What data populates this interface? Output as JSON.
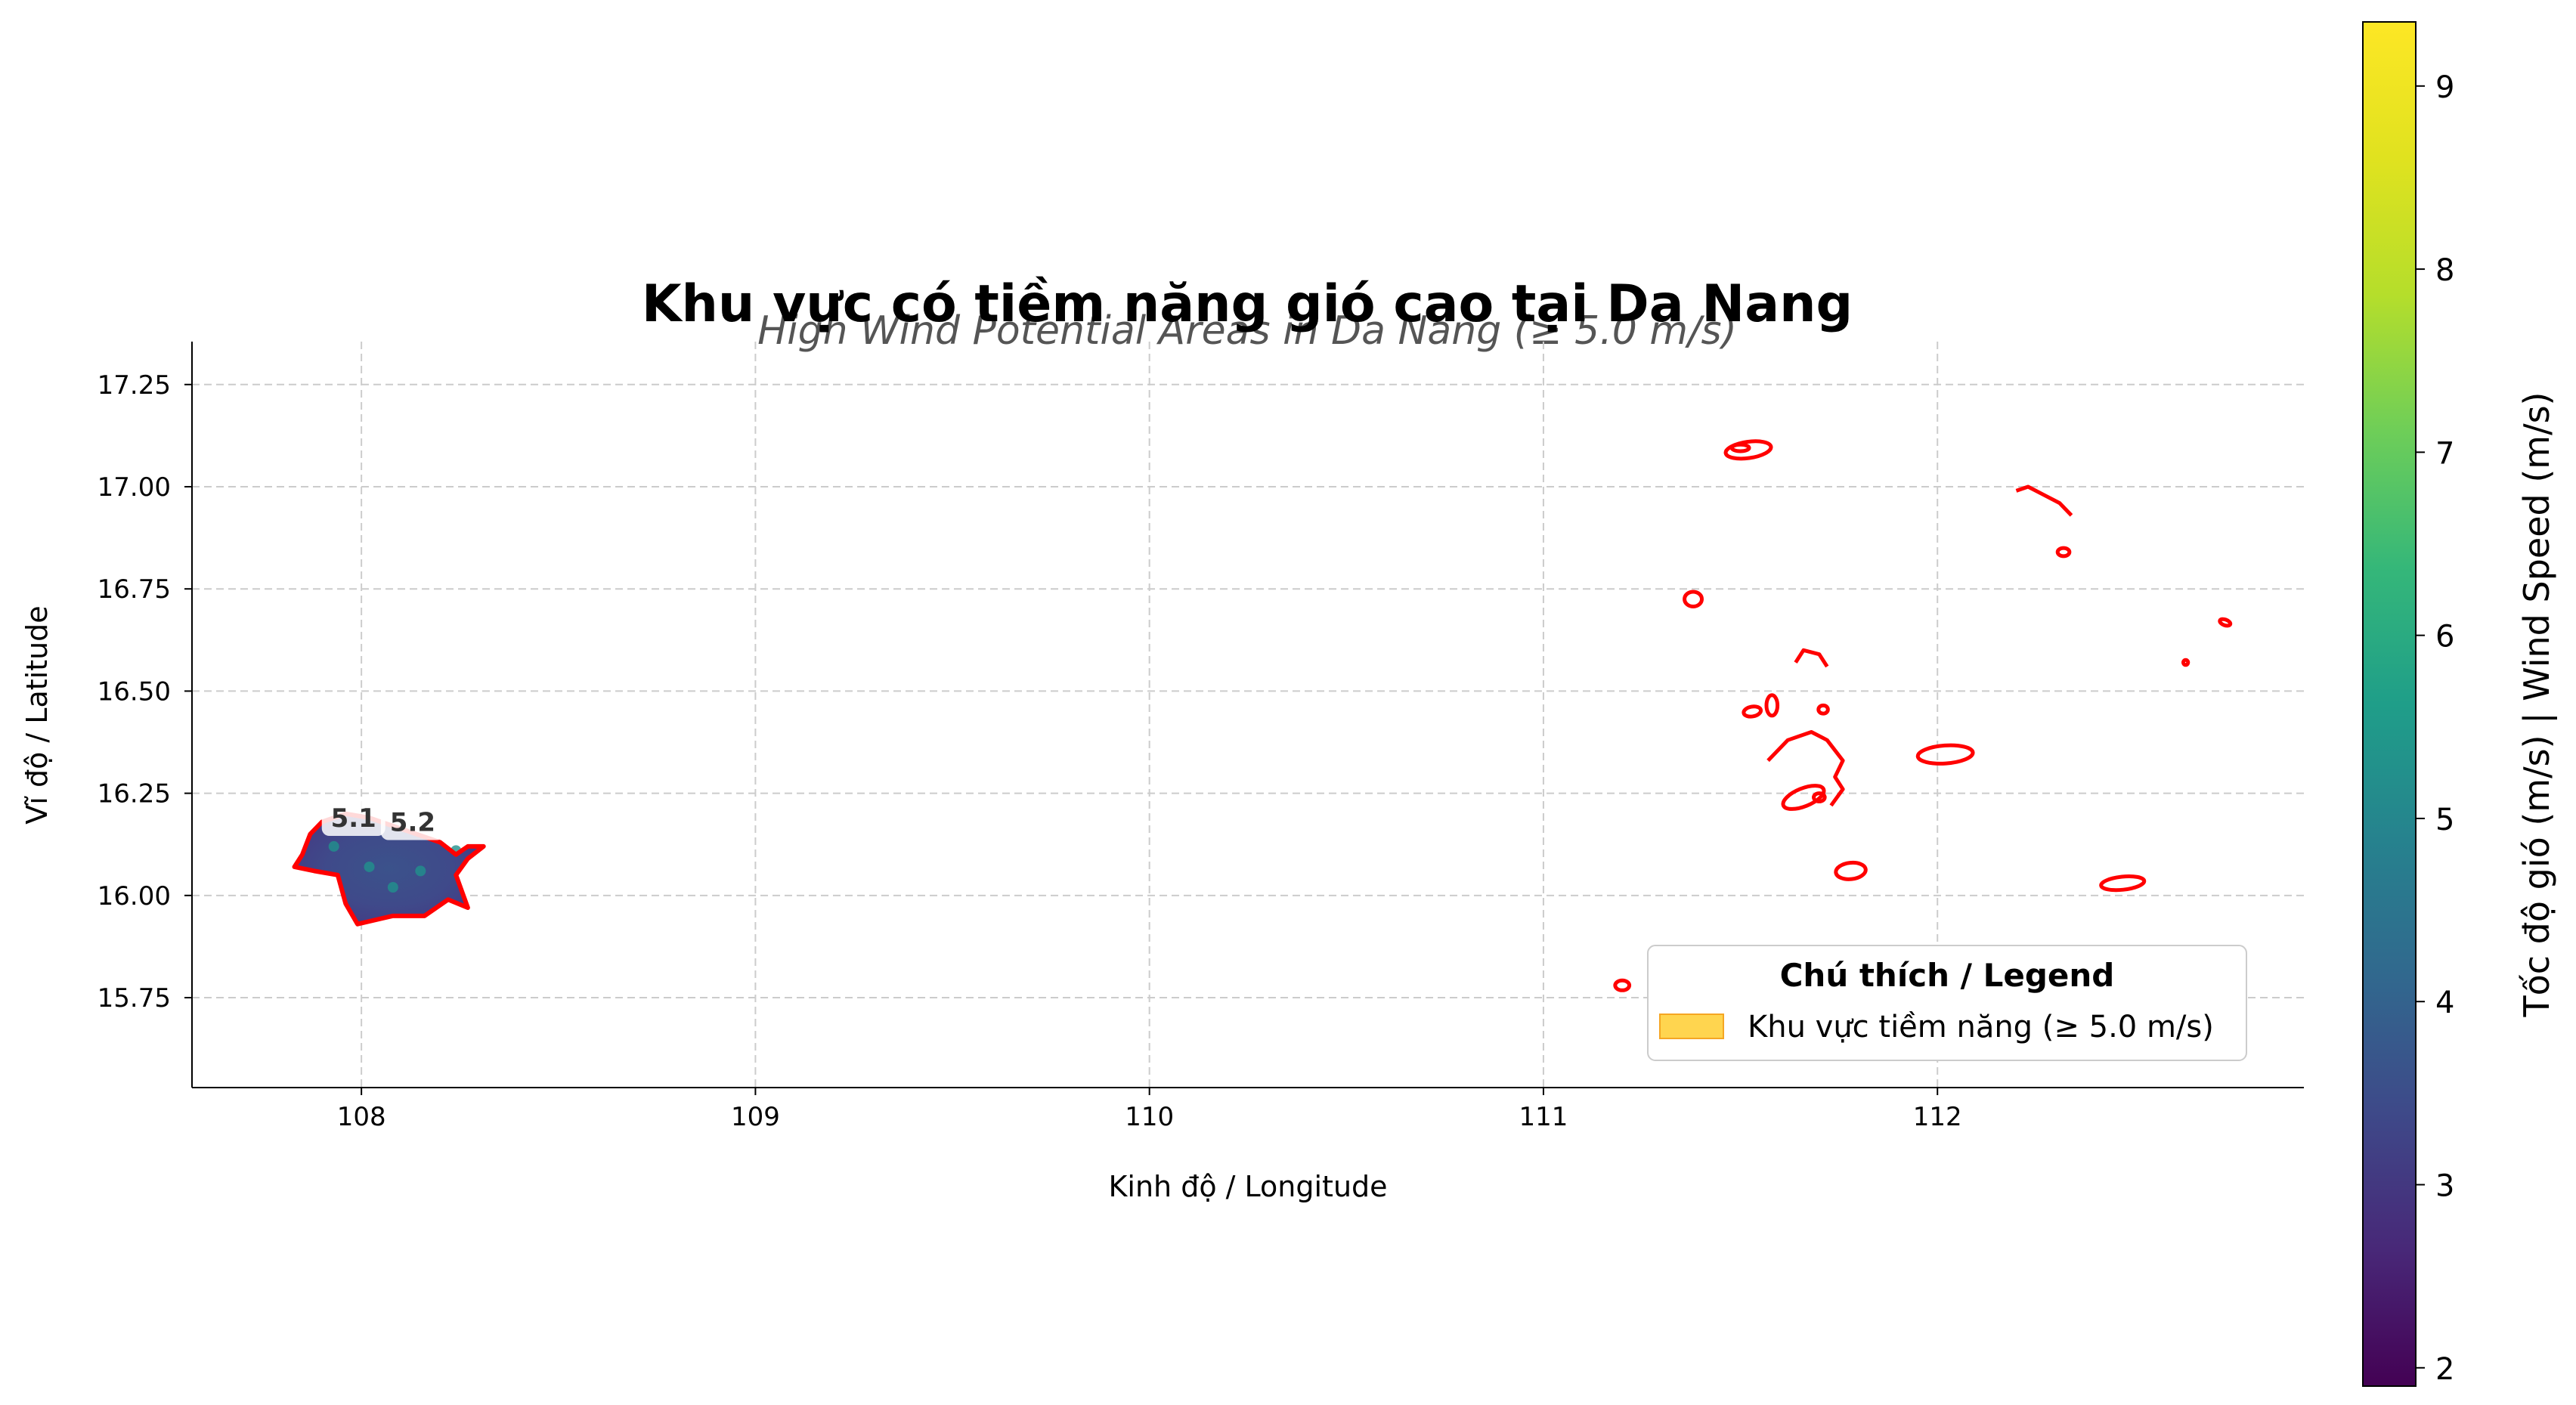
{
  "chart_data": {
    "type": "map",
    "title": "Khu vực có tiềm năng gió cao tại Da Nang",
    "subtitle": "High Wind Potential Areas in Da Nang (≥ 5.0 m/s)",
    "xlabel": "Kinh độ / Longitude",
    "ylabel": "Vĩ độ / Latitude",
    "xlim": [
      107.57,
      112.93
    ],
    "ylim": [
      15.53,
      17.355
    ],
    "xticks": [
      108,
      109,
      110,
      111,
      112
    ],
    "xtick_labels": [
      "108",
      "109",
      "110",
      "111",
      "112"
    ],
    "yticks": [
      15.75,
      16.0,
      16.25,
      16.5,
      16.75,
      17.0,
      17.25
    ],
    "ytick_labels": [
      "15.75",
      "16.00",
      "16.25",
      "16.50",
      "16.75",
      "17.00",
      "17.25"
    ],
    "grid": true,
    "colorbar": {
      "label": "Tốc độ gió (m/s) | Wind Speed (m/s)",
      "colormap": "viridis",
      "min": 1.9,
      "max": 9.35,
      "ticks": [
        2,
        3,
        4,
        5,
        6,
        7,
        8,
        9
      ],
      "tick_labels": [
        "2",
        "3",
        "4",
        "5",
        "6",
        "7",
        "8",
        "9"
      ]
    },
    "legend": {
      "title": "Chú thích / Legend",
      "position": "lower-right",
      "entries": [
        {
          "label": "Khu vực tiềm năng (≥ 5.0 m/s)",
          "color": "#ffd54f"
        }
      ]
    },
    "annotations": [
      {
        "text": "5.1",
        "x": 107.98,
        "y": 16.19
      },
      {
        "text": "5.2",
        "x": 108.13,
        "y": 16.18
      }
    ],
    "threshold_contour_color": "#ff0000",
    "land_region": {
      "description_color": "#3b528b",
      "outline": [
        [
          107.83,
          16.07
        ],
        [
          107.85,
          16.1
        ],
        [
          107.87,
          16.15
        ],
        [
          107.9,
          16.18
        ],
        [
          107.96,
          16.2
        ],
        [
          108.02,
          16.19
        ],
        [
          108.08,
          16.17
        ],
        [
          108.14,
          16.15
        ],
        [
          108.2,
          16.13
        ],
        [
          108.24,
          16.1
        ],
        [
          108.27,
          16.12
        ],
        [
          108.31,
          16.12
        ],
        [
          108.27,
          16.09
        ],
        [
          108.24,
          16.05
        ],
        [
          108.27,
          15.97
        ],
        [
          108.22,
          15.99
        ],
        [
          108.16,
          15.95
        ],
        [
          108.08,
          15.95
        ],
        [
          107.99,
          15.93
        ],
        [
          107.96,
          15.98
        ],
        [
          107.94,
          16.05
        ],
        [
          107.88,
          16.06
        ],
        [
          107.83,
          16.07
        ]
      ]
    },
    "contours": [
      {
        "center": [
          111.52,
          17.09
        ],
        "rx": 0.058,
        "ry": 0.02,
        "rot": -8
      },
      {
        "center": [
          111.5,
          17.095
        ],
        "rx": 0.022,
        "ry": 0.008,
        "rot": 0
      },
      {
        "center": [
          111.38,
          16.725
        ],
        "rx": 0.022,
        "ry": 0.018,
        "rot": 0
      },
      {
        "center": [
          112.32,
          16.84
        ],
        "rx": 0.015,
        "ry": 0.01,
        "rot": 0
      },
      {
        "center": [
          111.53,
          16.45
        ],
        "rx": 0.022,
        "ry": 0.012,
        "rot": -10
      },
      {
        "center": [
          111.58,
          16.465
        ],
        "rx": 0.014,
        "ry": 0.025,
        "rot": 0
      },
      {
        "center": [
          111.71,
          16.455
        ],
        "rx": 0.012,
        "ry": 0.01,
        "rot": 0
      },
      {
        "center": [
          111.66,
          16.24
        ],
        "rx": 0.055,
        "ry": 0.022,
        "rot": -22
      },
      {
        "center": [
          111.7,
          16.24
        ],
        "rx": 0.014,
        "ry": 0.01,
        "rot": 0
      },
      {
        "center": [
          111.78,
          16.06
        ],
        "rx": 0.038,
        "ry": 0.02,
        "rot": -6
      },
      {
        "center": [
          112.02,
          16.345
        ],
        "rx": 0.07,
        "ry": 0.022,
        "rot": -4
      },
      {
        "center": [
          111.2,
          15.78
        ],
        "rx": 0.018,
        "ry": 0.012,
        "rot": 0
      },
      {
        "center": [
          112.47,
          16.03
        ],
        "rx": 0.055,
        "ry": 0.016,
        "rot": -6
      },
      {
        "center": [
          112.63,
          16.57
        ],
        "rx": 0.006,
        "ry": 0.006,
        "rot": 0
      },
      {
        "center": [
          112.73,
          16.668
        ],
        "rx": 0.014,
        "ry": 0.007,
        "rot": 20
      }
    ],
    "contour_paths": [
      [
        [
          111.57,
          16.33
        ],
        [
          111.62,
          16.38
        ],
        [
          111.68,
          16.4
        ],
        [
          111.72,
          16.38
        ],
        [
          111.76,
          16.33
        ],
        [
          111.74,
          16.29
        ],
        [
          111.76,
          16.26
        ],
        [
          111.73,
          16.22
        ]
      ],
      [
        [
          111.64,
          16.57
        ],
        [
          111.66,
          16.6
        ],
        [
          111.7,
          16.59
        ],
        [
          111.72,
          16.56
        ]
      ],
      [
        [
          112.2,
          16.99
        ],
        [
          112.23,
          17.0
        ],
        [
          112.27,
          16.98
        ],
        [
          112.31,
          16.96
        ],
        [
          112.34,
          16.93
        ]
      ]
    ]
  }
}
